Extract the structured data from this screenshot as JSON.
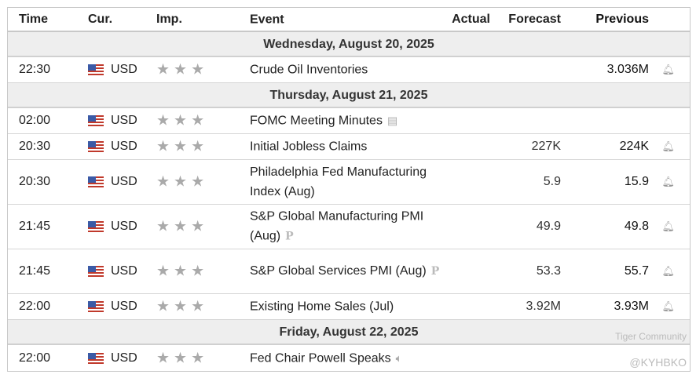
{
  "columns": {
    "time": "Time",
    "cur": "Cur.",
    "imp": "Imp.",
    "event": "Event",
    "actual": "Actual",
    "forecast": "Forecast",
    "previous": "Previous"
  },
  "groups": [
    {
      "date": "Wednesday, August 20, 2025",
      "rows": [
        {
          "time": "22:30",
          "currency": "USD",
          "event": "Crude Oil Inventories",
          "actual": "",
          "forecast": "",
          "previous": "3.036M",
          "icon": "bell-icon"
        }
      ]
    },
    {
      "date": "Thursday, August 21, 2025",
      "rows": [
        {
          "time": "02:00",
          "currency": "USD",
          "event": "FOMC Meeting Minutes",
          "actual": "",
          "forecast": "",
          "previous": "",
          "icon": "document-icon"
        },
        {
          "time": "20:30",
          "currency": "USD",
          "event": "Initial Jobless Claims",
          "actual": "",
          "forecast": "227K",
          "previous": "224K",
          "icon": "bell-icon"
        },
        {
          "time": "20:30",
          "currency": "USD",
          "event": "Philadelphia Fed Manufacturing Index (Aug)",
          "actual": "",
          "forecast": "5.9",
          "previous": "15.9",
          "icon": "bell-icon"
        },
        {
          "time": "21:45",
          "currency": "USD",
          "event": "S&P Global Manufacturing PMI (Aug)",
          "actual": "",
          "forecast": "49.9",
          "previous": "49.8",
          "icon": "bell-icon",
          "preliminary": "P"
        },
        {
          "time": "21:45",
          "currency": "USD",
          "event": "S&P Global Services PMI (Aug)",
          "actual": "",
          "forecast": "53.3",
          "previous": "55.7",
          "icon": "bell-icon",
          "preliminary": "P"
        },
        {
          "time": "22:00",
          "currency": "USD",
          "event": "Existing Home Sales (Jul)",
          "actual": "",
          "forecast": "3.92M",
          "previous": "3.93M",
          "icon": "bell-icon"
        }
      ]
    },
    {
      "date": "Friday, August 22, 2025",
      "rows": [
        {
          "time": "22:00",
          "currency": "USD",
          "event": "Fed Chair Powell Speaks",
          "actual": "",
          "forecast": "",
          "previous": "",
          "icon": "speaker-icon"
        }
      ]
    }
  ],
  "importance_stars": 3,
  "watermark": {
    "brand": "Tiger Community",
    "handle": "@KYHBKO"
  }
}
